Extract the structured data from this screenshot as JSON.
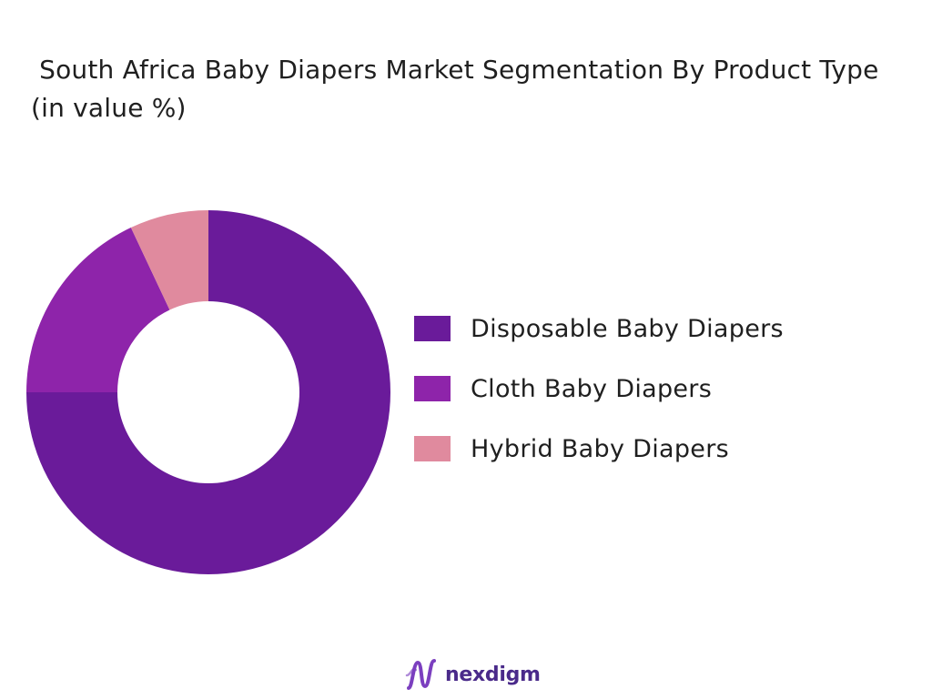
{
  "chart_data": {
    "type": "pie",
    "variant": "donut",
    "title": " South Africa Baby Diapers Market Segmentation By Product Type (in value %)",
    "categories": [
      "Disposable Baby Diapers",
      "Cloth Baby Diapers",
      "Hybrid Baby Diapers"
    ],
    "values": [
      75,
      18,
      7
    ],
    "unit": "%",
    "colors": [
      "#6a1b9a",
      "#8e24aa",
      "#e08a9e"
    ],
    "legend_position": "right",
    "start_angle": "top",
    "direction": "clockwise"
  },
  "brand": {
    "name": "nexdigm",
    "logo_icon": "nexdigm-wave-logo-icon",
    "logo_color": "#7b3fbf"
  }
}
